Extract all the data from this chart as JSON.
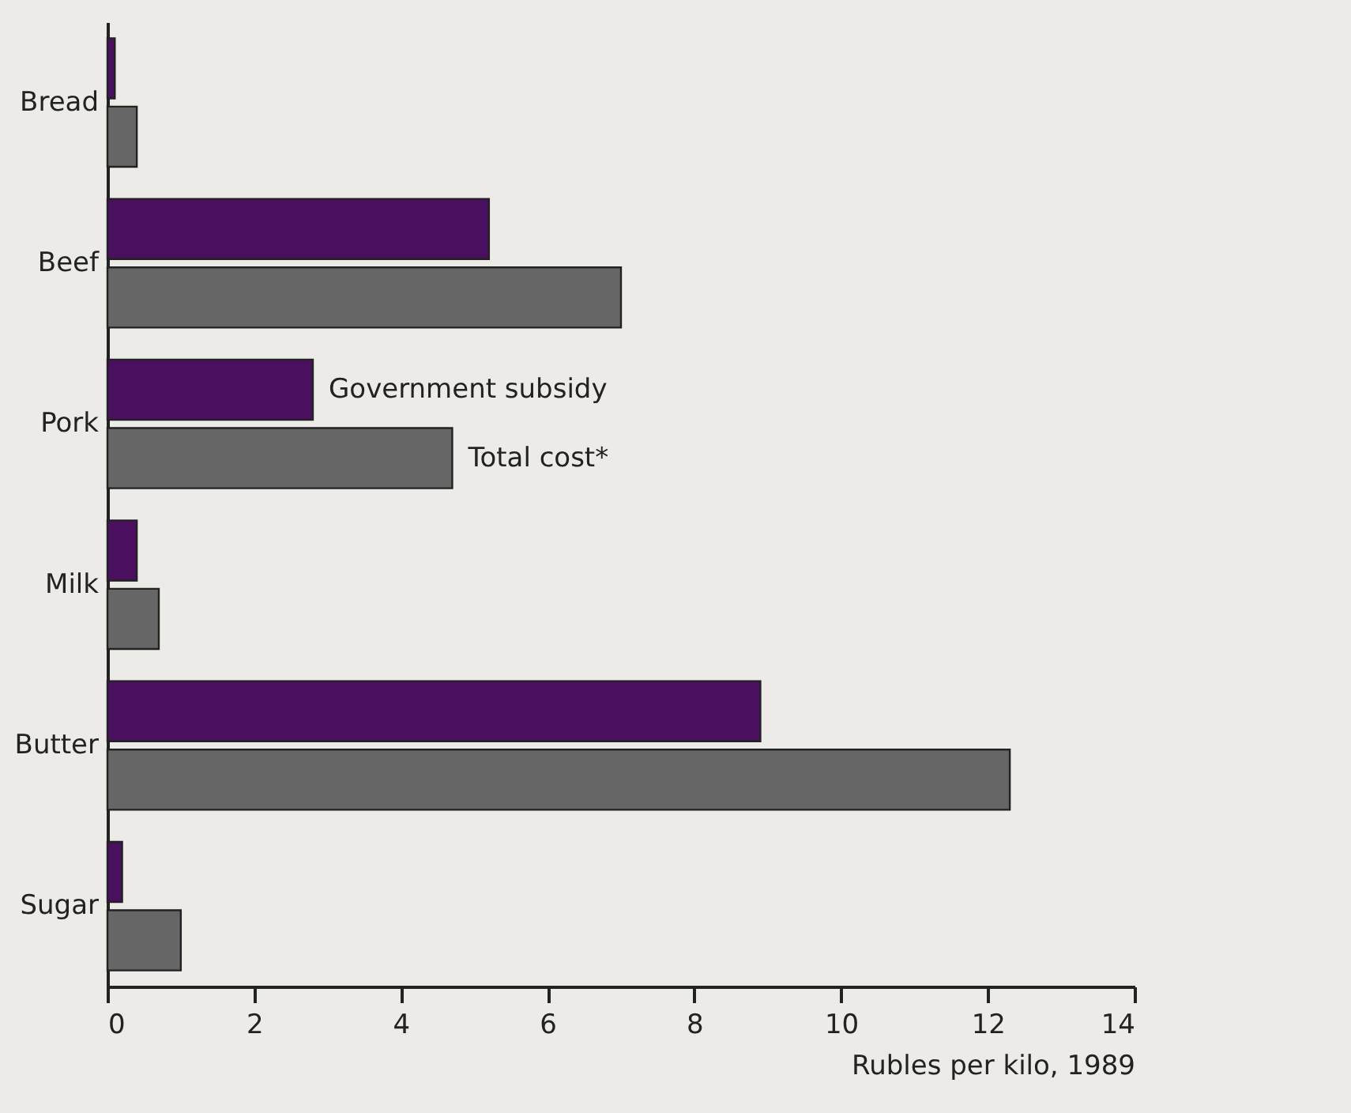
{
  "chart_data": {
    "type": "bar",
    "orientation": "horizontal",
    "xlabel": "Rubles per kilo, 1989",
    "categories": [
      "Bread",
      "Beef",
      "Pork",
      "Milk",
      "Butter",
      "Sugar"
    ],
    "series": [
      {
        "name": "Government subsidy",
        "color": "#4a0f5e",
        "values": [
          0.1,
          5.2,
          2.8,
          0.4,
          8.9,
          0.2
        ]
      },
      {
        "name": "Total cost*",
        "color": "#666666",
        "values": [
          0.4,
          7.0,
          4.7,
          0.7,
          12.3,
          1.0
        ]
      }
    ],
    "xlim": [
      0,
      14
    ],
    "xticks": [
      0,
      2,
      4,
      6,
      8,
      10,
      12,
      14
    ],
    "grid": false,
    "legend": false
  }
}
